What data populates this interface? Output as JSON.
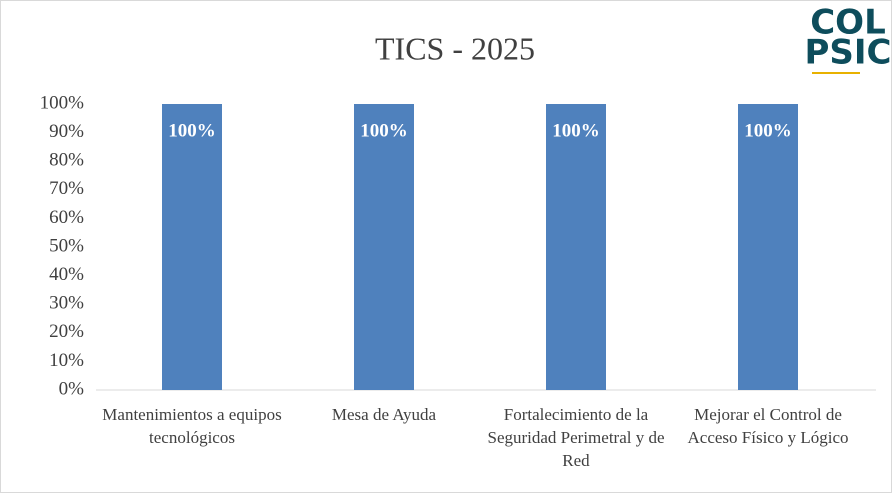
{
  "chart_data": {
    "type": "bar",
    "title": "TICS - 2025",
    "logo": [
      "COL",
      "PSIC"
    ],
    "categories": [
      "Mantenimientos a equipos tecnológicos",
      "Mesa de Ayuda",
      "Fortalecimiento de la Seguridad Perimetral y de Red",
      "Mejorar el Control de Acceso Físico y Lógico"
    ],
    "values": [
      100,
      100,
      100,
      100
    ],
    "value_labels": [
      "100%",
      "100%",
      "100%",
      "100%"
    ],
    "color": "#4f81bd",
    "ylim": [
      0,
      100
    ],
    "yticks": [
      {
        "value": 0,
        "label": "0%"
      },
      {
        "value": 10,
        "label": "10%"
      },
      {
        "value": 20,
        "label": "20%"
      },
      {
        "value": 30,
        "label": "30%"
      },
      {
        "value": 40,
        "label": "40%"
      },
      {
        "value": 50,
        "label": "50%"
      },
      {
        "value": 60,
        "label": "60%"
      },
      {
        "value": 70,
        "label": "70%"
      },
      {
        "value": 80,
        "label": "80%"
      },
      {
        "value": 90,
        "label": "90%"
      },
      {
        "value": 100,
        "label": "100%"
      }
    ],
    "grid": false
  }
}
